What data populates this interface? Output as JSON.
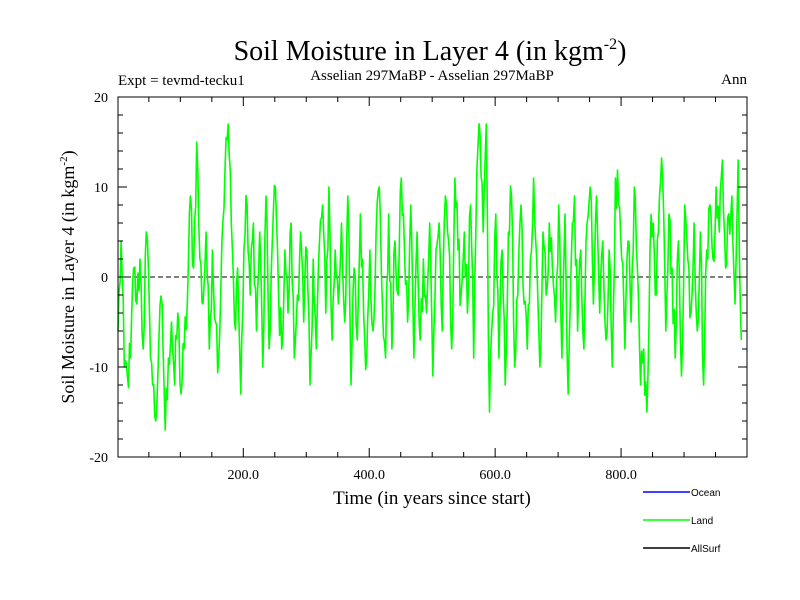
{
  "chart_data": {
    "type": "line",
    "title_main": "Soil Moisture in Layer 4 (in kgm",
    "title_sup": "-2",
    "title_end": ")",
    "expt_label": "Expt = tevmd-tecku1",
    "subtitle": "Asselian 297MaBP - Asselian 297MaBP",
    "season": "Ann",
    "ylabel_main": "Soil Moisture in Layer 4 (in kgm",
    "ylabel_sup": "-2",
    "ylabel_end": ")",
    "xlabel": "Time (in years since start)",
    "xlim": [
      1,
      1000
    ],
    "ylim": [
      -20,
      20
    ],
    "x_ticks": [
      {
        "value": 200,
        "label": "200.0"
      },
      {
        "value": 400,
        "label": "400.0"
      },
      {
        "value": 600,
        "label": "600.0"
      },
      {
        "value": 800,
        "label": "800.0"
      }
    ],
    "y_ticks": [
      {
        "value": 20,
        "label": "20"
      },
      {
        "value": 10,
        "label": "10"
      },
      {
        "value": 0,
        "label": "0"
      },
      {
        "value": -10,
        "label": "-10"
      },
      {
        "value": -20,
        "label": "-20"
      }
    ],
    "zero_line": {
      "value": 0,
      "style": "dashed",
      "color": "#000000"
    },
    "legend": [
      {
        "name": "Ocean",
        "color": "#0000ff"
      },
      {
        "name": "Land",
        "color": "#00ff00"
      },
      {
        "name": "AllSurf",
        "color": "#000000"
      }
    ],
    "series": [
      {
        "name": "Land",
        "color": "#00ff00",
        "x_start": 1,
        "x_step": 5,
        "values": [
          -6,
          4,
          -10,
          -11,
          -9,
          1,
          -3,
          2,
          -8,
          5,
          -4,
          -12,
          -16,
          -7,
          -3,
          -17,
          -9,
          -5,
          -12,
          -4,
          -13,
          -8,
          -3,
          9,
          1,
          15,
          2,
          -3,
          5,
          -8,
          3,
          -5,
          -9,
          4,
          12,
          17,
          6,
          -5,
          1,
          -13,
          3,
          8,
          -2,
          6,
          -6,
          5,
          -10,
          9,
          -8,
          4,
          10,
          -2,
          -8,
          3,
          -4,
          6,
          -9,
          -2,
          5,
          -5,
          3,
          -12,
          2,
          -8,
          4,
          8,
          -4,
          10,
          -7,
          3,
          -3,
          6,
          -5,
          9,
          -12,
          1,
          -7,
          7,
          -4,
          -9,
          3,
          -6,
          5,
          10,
          -3,
          -9,
          7,
          -8,
          4,
          -2,
          11,
          3,
          -5,
          8,
          -9,
          5,
          -7,
          2,
          -4,
          6,
          -11,
          3,
          6,
          -6,
          9,
          4,
          -8,
          11,
          3,
          -2,
          5,
          -4,
          8,
          -9,
          12,
          16,
          5,
          17,
          -15,
          -4,
          7,
          -9,
          3,
          -12,
          5,
          9,
          -10,
          -2,
          8,
          -3,
          -8,
          2,
          11,
          2,
          -10,
          5,
          -2,
          6,
          1,
          -5,
          8,
          -9,
          7,
          -13,
          2,
          9,
          -6,
          3,
          -8,
          6,
          10,
          -3,
          9,
          -4,
          4,
          -7,
          3,
          -10,
          11,
          8,
          2,
          -8,
          4,
          -5,
          10,
          1,
          -12,
          -8,
          -15,
          3,
          6,
          -2,
          9,
          11,
          -6,
          7,
          1,
          -9,
          4,
          -11,
          8,
          2,
          -4,
          6,
          -6,
          5,
          -12,
          3,
          8,
          2,
          10,
          5,
          13,
          1,
          7,
          9,
          -3,
          13,
          -7
        ]
      }
    ]
  }
}
